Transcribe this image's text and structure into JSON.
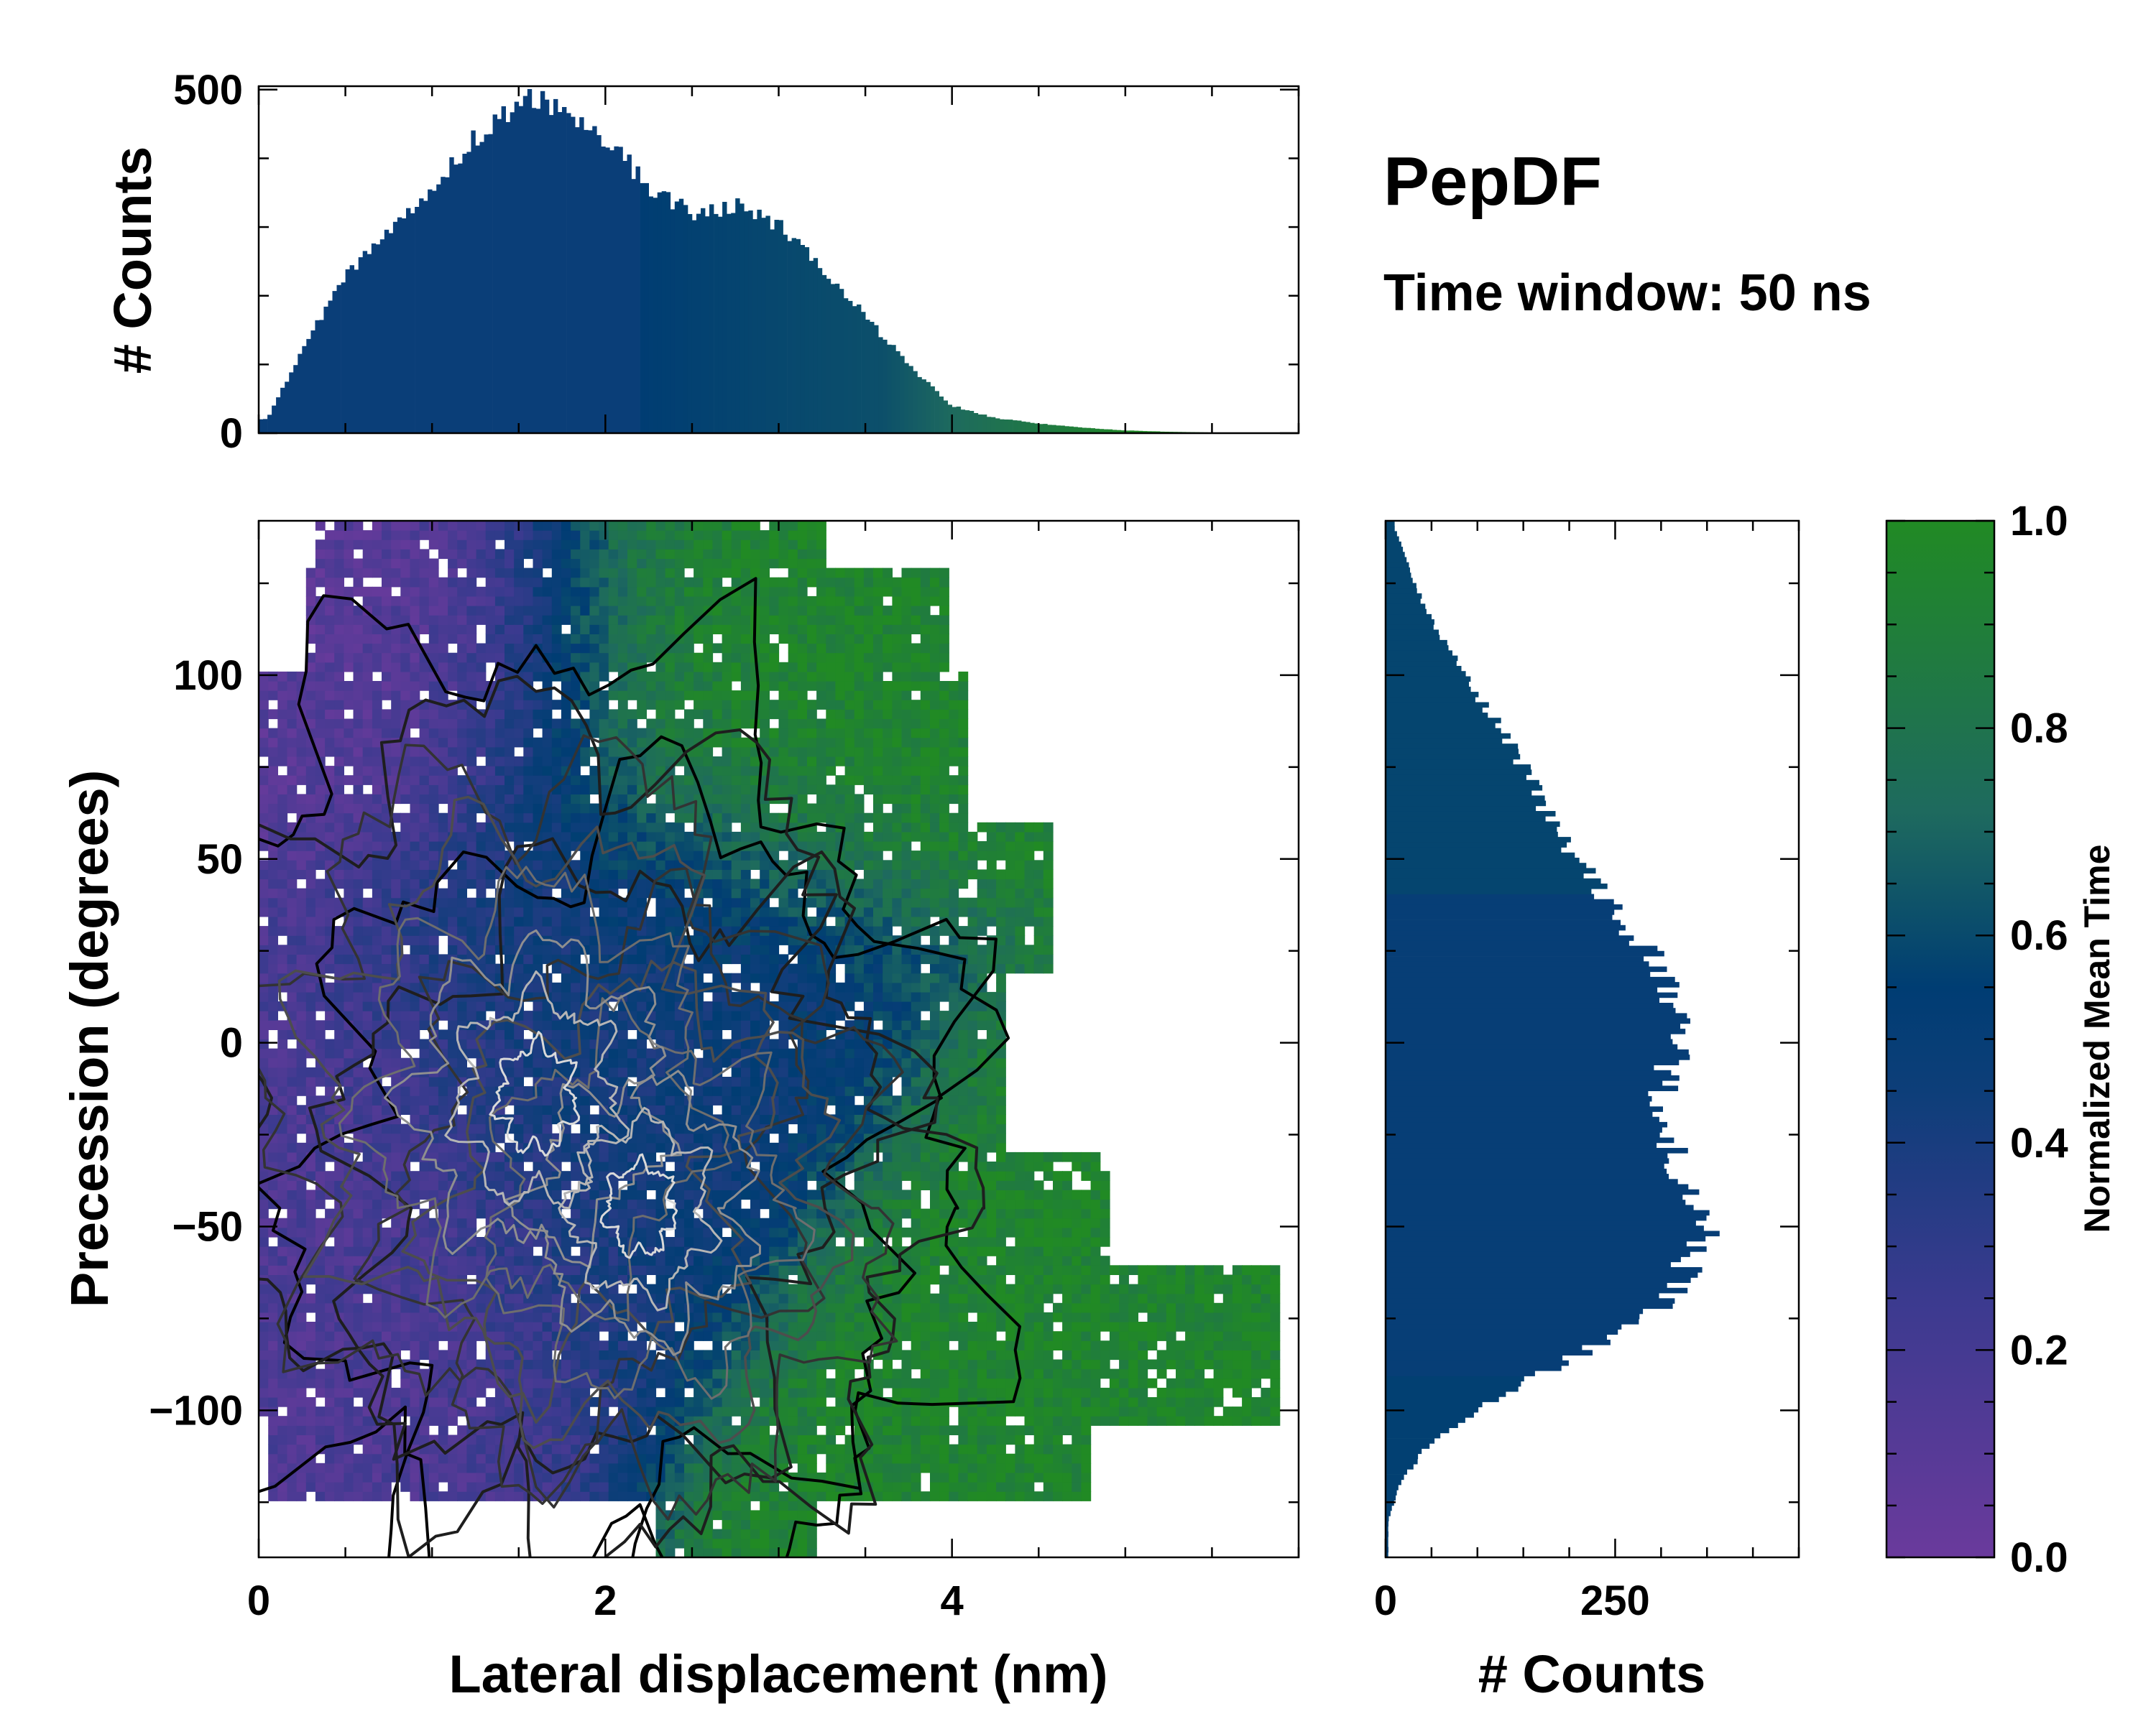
{
  "chart_data": [
    {
      "type": "heatmap",
      "panel": "main-joint",
      "title": "",
      "xlabel": "Lateral displacement (nm)",
      "ylabel": "Precession (degrees)",
      "xlim": [
        0,
        6
      ],
      "ylim": [
        -140,
        142
      ],
      "x_ticks": [
        0,
        2,
        4
      ],
      "x_tick_labels": [
        "0",
        "2",
        "4"
      ],
      "y_ticks": [
        -100,
        -50,
        0,
        50,
        100
      ],
      "y_tick_labels": [
        "−100",
        "−50",
        "0",
        "50",
        "100"
      ],
      "color_metric": "Normalized Mean Time",
      "overlay": "density contours (light = high density)",
      "density_center": {
        "x": 1.6,
        "y": -15
      },
      "time_regions": [
        {
          "description": "early (purple)",
          "x": 0.6,
          "y": 120,
          "value": 0.1
        },
        {
          "description": "early (purple)",
          "x": 0.3,
          "y": -40,
          "value": 0.15
        },
        {
          "description": "late (green)",
          "x": 2.9,
          "y": 115,
          "value": 0.95
        },
        {
          "description": "late (green)",
          "x": 4.6,
          "y": -90,
          "value": 0.95
        },
        {
          "description": "mid (blue)",
          "x": 2.0,
          "y": 0,
          "value": 0.45
        }
      ]
    },
    {
      "type": "bar",
      "panel": "top-marginal",
      "xlabel": "",
      "ylabel": "# Counts",
      "xlim": [
        0,
        6
      ],
      "ylim": [
        0,
        505
      ],
      "y_ticks": [
        0,
        500
      ],
      "y_tick_labels": [
        "0",
        "500"
      ],
      "bins": [
        0.05,
        0.25,
        0.5,
        0.75,
        1.0,
        1.25,
        1.5,
        1.6,
        1.75,
        2.0,
        2.25,
        2.5,
        2.75,
        3.0,
        3.25,
        3.5,
        3.75,
        4.0,
        4.25,
        4.5,
        4.75,
        5.0,
        5.25,
        5.5,
        5.75,
        6.0
      ],
      "values": [
        20,
        120,
        230,
        290,
        360,
        430,
        475,
        490,
        470,
        430,
        360,
        320,
        330,
        305,
        240,
        170,
        100,
        40,
        22,
        14,
        8,
        4,
        2,
        1,
        1,
        0
      ]
    },
    {
      "type": "bar",
      "panel": "right-marginal",
      "orientation": "horizontal",
      "xlabel": "# Counts",
      "ylabel": "",
      "xlim": [
        0,
        450
      ],
      "x_ticks": [
        0,
        250
      ],
      "x_tick_labels": [
        "0",
        "250"
      ],
      "ylim": [
        -140,
        142
      ],
      "bins": [
        140,
        120,
        100,
        80,
        60,
        40,
        20,
        0,
        -20,
        -40,
        -50,
        -60,
        -70,
        -80,
        -90,
        -100,
        -110,
        -120,
        -130
      ],
      "values": [
        10,
        40,
        85,
        140,
        180,
        240,
        300,
        320,
        290,
        335,
        355,
        330,
        305,
        250,
        170,
        100,
        45,
        15,
        3
      ]
    },
    {
      "type": "colorbar",
      "panel": "colorbar",
      "label": "Normalized Mean Time",
      "range": [
        0.0,
        1.0
      ],
      "ticks": [
        "0.0",
        "0.2",
        "0.4",
        "0.6",
        "0.8",
        "1.0"
      ]
    }
  ],
  "annotation": {
    "title": "PepDF",
    "subtitle": "Time window: 50 ns"
  },
  "colors": {
    "purple": "#6a3a9c",
    "blue": "#003d73",
    "teal": "#1e6a5e",
    "green": "#218a24"
  }
}
